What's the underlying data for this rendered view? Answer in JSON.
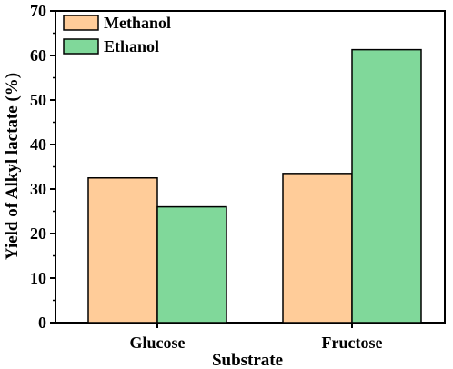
{
  "chart_data": {
    "type": "bar",
    "categories": [
      "Glucose",
      "Fructose"
    ],
    "series": [
      {
        "name": "Methanol",
        "values": [
          32.5,
          33.5
        ],
        "color": "#FFCC99"
      },
      {
        "name": "Ethanol",
        "values": [
          26.0,
          61.3
        ],
        "color": "#80D89A"
      }
    ],
    "xlabel": "Substrate",
    "ylabel": "Yield of Alkyl lactate (%)",
    "ylim": [
      0,
      70
    ],
    "yticks": [
      0,
      10,
      20,
      30,
      40,
      50,
      60,
      70
    ],
    "grid": false,
    "legend_position": "top-left"
  }
}
